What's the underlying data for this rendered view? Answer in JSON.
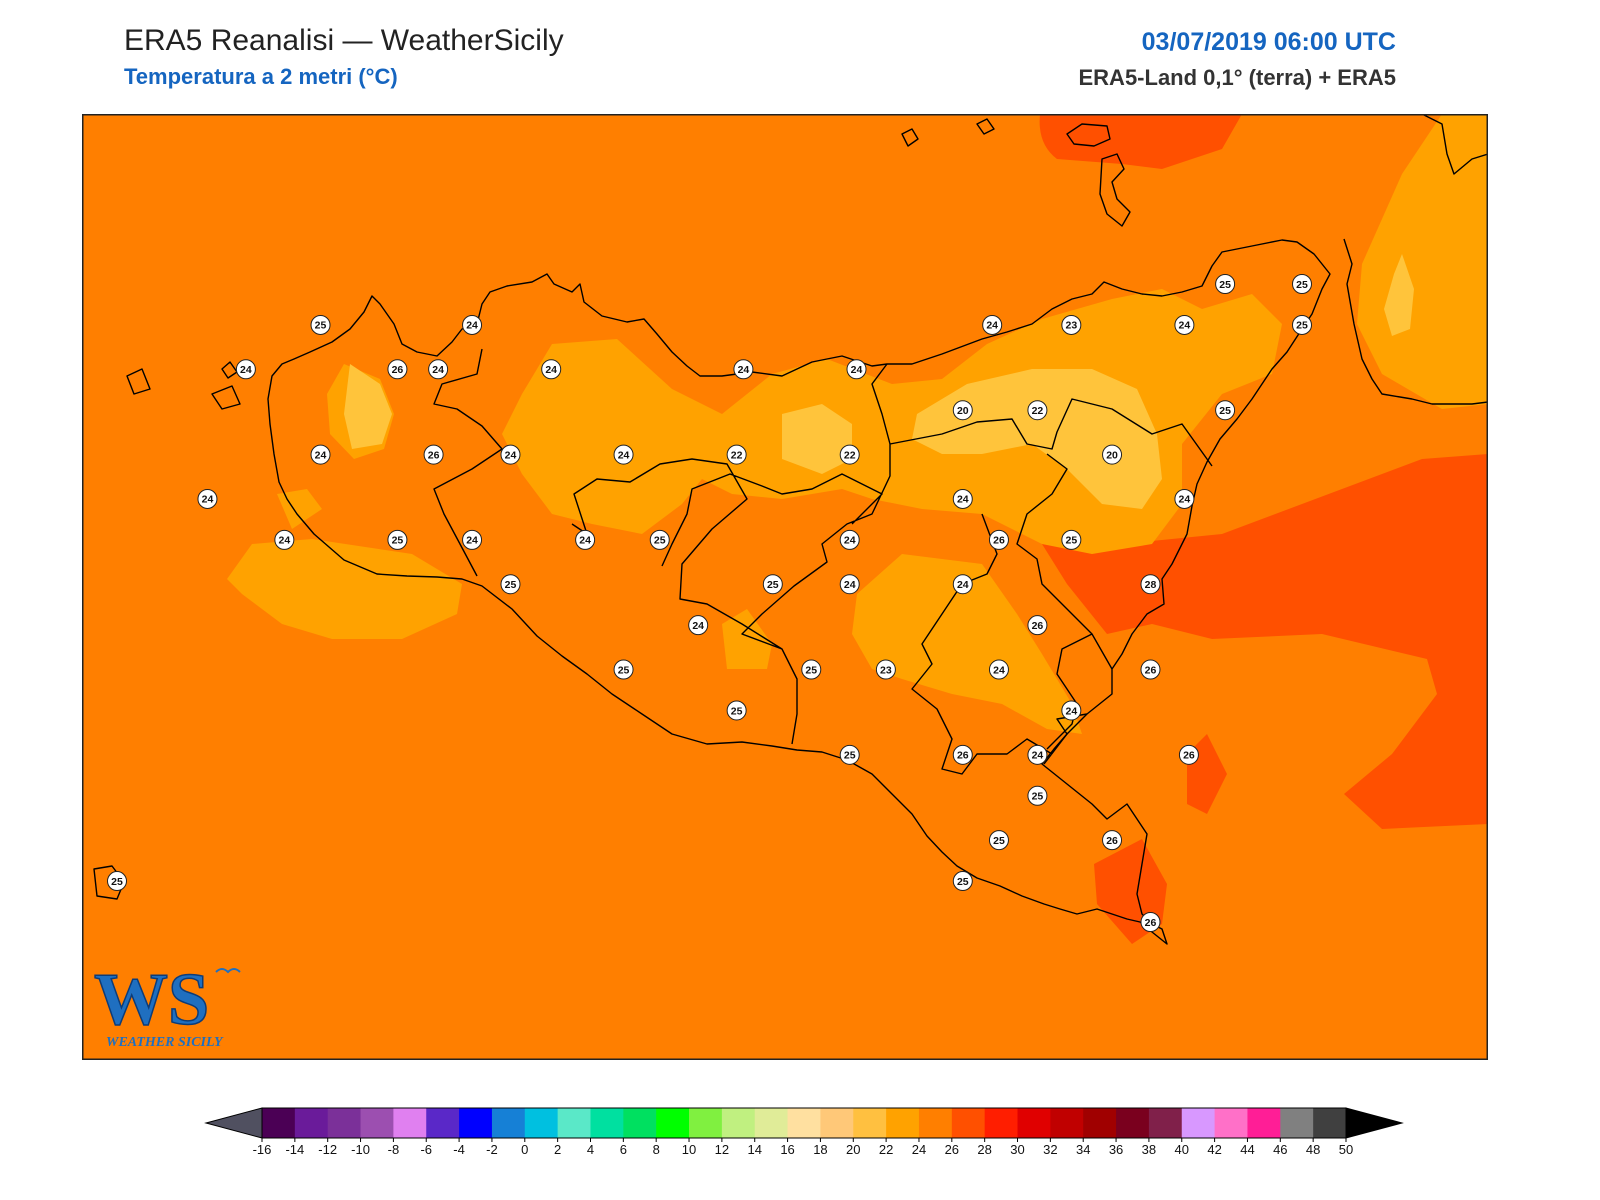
{
  "header": {
    "title": "ERA5 Reanalisi — WeatherSicily",
    "subtitle": "Temperatura a 2 metri (°C)",
    "datetime": "03/07/2019 06:00 UTC",
    "source": "ERA5-Land 0,1° (terra) + ERA5"
  },
  "logo": {
    "letters": "WS",
    "name": "WEATHER SICILY"
  },
  "colors": {
    "background_field": "#ff7f00",
    "t22": "#ffa200",
    "t20": "#ffc43b",
    "t26": "#ff5000",
    "coast": "#000000"
  },
  "colorbar": {
    "ticks": [
      "-16",
      "-14",
      "-12",
      "-10",
      "-8",
      "-6",
      "-4",
      "-2",
      "0",
      "2",
      "4",
      "6",
      "8",
      "10",
      "12",
      "14",
      "16",
      "18",
      "20",
      "22",
      "24",
      "26",
      "28",
      "30",
      "32",
      "34",
      "36",
      "38",
      "40",
      "42",
      "44",
      "46",
      "48",
      "50"
    ],
    "colors": [
      "#4b0055",
      "#6a1b9a",
      "#7b3099",
      "#9c4fb0",
      "#e080f0",
      "#5a28c8",
      "#0000ff",
      "#1680d6",
      "#00c0e0",
      "#5ae8c8",
      "#00e0a0",
      "#00e060",
      "#00ff00",
      "#80f040",
      "#c0f080",
      "#e0ec98",
      "#ffe0a0",
      "#ffc878",
      "#ffc040",
      "#ffa200",
      "#ff7f00",
      "#ff5000",
      "#ff1e00",
      "#e00000",
      "#c00000",
      "#a00000",
      "#7a001e",
      "#80204a",
      "#d898ff",
      "#ff70c8",
      "#ff1e96",
      "#808080",
      "#404040"
    ],
    "under_color": "#505060",
    "over_color": "#000000"
  },
  "stations": [
    {
      "v": "25",
      "lon": 12.88,
      "lat": 38.18
    },
    {
      "v": "24",
      "lon": 12.55,
      "lat": 38.05
    },
    {
      "v": "26",
      "lon": 13.22,
      "lat": 38.05
    },
    {
      "v": "24",
      "lon": 13.55,
      "lat": 38.18
    },
    {
      "v": "24",
      "lon": 13.4,
      "lat": 38.05
    },
    {
      "v": "24",
      "lon": 13.9,
      "lat": 38.05
    },
    {
      "v": "24",
      "lon": 14.75,
      "lat": 38.05
    },
    {
      "v": "24",
      "lon": 15.25,
      "lat": 38.05
    },
    {
      "v": "24",
      "lon": 15.85,
      "lat": 38.18
    },
    {
      "v": "23",
      "lon": 16.2,
      "lat": 38.18
    },
    {
      "v": "24",
      "lon": 16.7,
      "lat": 38.18
    },
    {
      "v": "25",
      "lon": 16.88,
      "lat": 38.3
    },
    {
      "v": "25",
      "lon": 17.22,
      "lat": 38.3
    },
    {
      "v": "25",
      "lon": 17.22,
      "lat": 38.18
    },
    {
      "v": "24",
      "lon": 12.88,
      "lat": 37.8
    },
    {
      "v": "26",
      "lon": 13.38,
      "lat": 37.8
    },
    {
      "v": "24",
      "lon": 13.72,
      "lat": 37.8
    },
    {
      "v": "24",
      "lon": 14.22,
      "lat": 37.8
    },
    {
      "v": "22",
      "lon": 14.72,
      "lat": 37.8
    },
    {
      "v": "22",
      "lon": 15.22,
      "lat": 37.8
    },
    {
      "v": "20",
      "lon": 15.72,
      "lat": 37.93
    },
    {
      "v": "22",
      "lon": 16.05,
      "lat": 37.93
    },
    {
      "v": "20",
      "lon": 16.38,
      "lat": 37.8
    },
    {
      "v": "25",
      "lon": 16.88,
      "lat": 37.93
    },
    {
      "v": "24",
      "lon": 12.38,
      "lat": 37.67
    },
    {
      "v": "24",
      "lon": 12.72,
      "lat": 37.55
    },
    {
      "v": "25",
      "lon": 13.22,
      "lat": 37.55
    },
    {
      "v": "24",
      "lon": 13.55,
      "lat": 37.55
    },
    {
      "v": "24",
      "lon": 14.05,
      "lat": 37.55
    },
    {
      "v": "25",
      "lon": 14.38,
      "lat": 37.55
    },
    {
      "v": "24",
      "lon": 15.22,
      "lat": 37.55
    },
    {
      "v": "24",
      "lon": 15.72,
      "lat": 37.67
    },
    {
      "v": "26",
      "lon": 15.88,
      "lat": 37.55
    },
    {
      "v": "25",
      "lon": 16.2,
      "lat": 37.55
    },
    {
      "v": "24",
      "lon": 16.7,
      "lat": 37.67
    },
    {
      "v": "25",
      "lon": 13.72,
      "lat": 37.42
    },
    {
      "v": "25",
      "lon": 14.88,
      "lat": 37.42
    },
    {
      "v": "24",
      "lon": 15.22,
      "lat": 37.42
    },
    {
      "v": "24",
      "lon": 15.72,
      "lat": 37.42
    },
    {
      "v": "28",
      "lon": 16.55,
      "lat": 37.42
    },
    {
      "v": "24",
      "lon": 14.55,
      "lat": 37.3
    },
    {
      "v": "26",
      "lon": 16.05,
      "lat": 37.3
    },
    {
      "v": "25",
      "lon": 14.22,
      "lat": 37.17
    },
    {
      "v": "25",
      "lon": 15.05,
      "lat": 37.17
    },
    {
      "v": "23",
      "lon": 15.38,
      "lat": 37.17
    },
    {
      "v": "24",
      "lon": 15.88,
      "lat": 37.17
    },
    {
      "v": "26",
      "lon": 16.55,
      "lat": 37.17
    },
    {
      "v": "25",
      "lon": 14.72,
      "lat": 37.05
    },
    {
      "v": "24",
      "lon": 16.2,
      "lat": 37.05
    },
    {
      "v": "25",
      "lon": 15.22,
      "lat": 36.92
    },
    {
      "v": "26",
      "lon": 15.72,
      "lat": 36.92
    },
    {
      "v": "24",
      "lon": 16.05,
      "lat": 36.92
    },
    {
      "v": "26",
      "lon": 16.72,
      "lat": 36.92
    },
    {
      "v": "25",
      "lon": 16.05,
      "lat": 36.8
    },
    {
      "v": "25",
      "lon": 15.88,
      "lat": 36.67
    },
    {
      "v": "26",
      "lon": 16.38,
      "lat": 36.67
    },
    {
      "v": "25",
      "lon": 11.98,
      "lat": 36.55
    },
    {
      "v": "25",
      "lon": 15.72,
      "lat": 36.55
    },
    {
      "v": "26",
      "lon": 16.55,
      "lat": 36.43
    }
  ]
}
